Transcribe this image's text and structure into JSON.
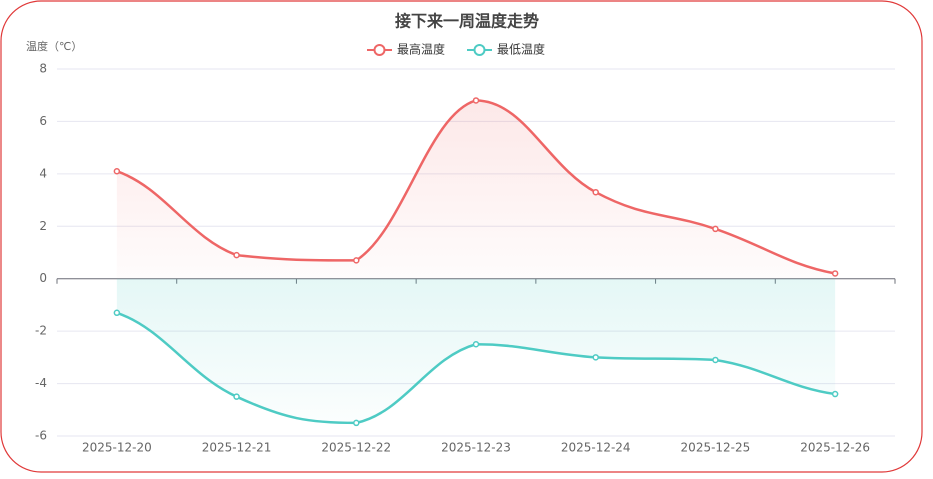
{
  "chart_data": {
    "type": "line",
    "title": "接下来一周温度走势",
    "y_label": "温度（℃）",
    "categories": [
      "2025-12-20",
      "2025-12-21",
      "2025-12-22",
      "2025-12-23",
      "2025-12-24",
      "2025-12-25",
      "2025-12-26"
    ],
    "series": [
      {
        "name": "最高温度",
        "color": "#ee6666",
        "values": [
          4.1,
          0.9,
          0.7,
          6.8,
          3.3,
          1.9,
          0.2
        ]
      },
      {
        "name": "最低温度",
        "color": "#4ecbc4",
        "values": [
          -1.3,
          -4.5,
          -5.5,
          -2.5,
          -3.0,
          -3.1,
          -4.4
        ]
      }
    ],
    "ylim": [
      -6,
      8
    ],
    "yticks": [
      -6,
      -4,
      -2,
      0,
      2,
      4,
      6,
      8
    ],
    "grid": true,
    "smooth": true,
    "area": true,
    "legend": "top"
  }
}
